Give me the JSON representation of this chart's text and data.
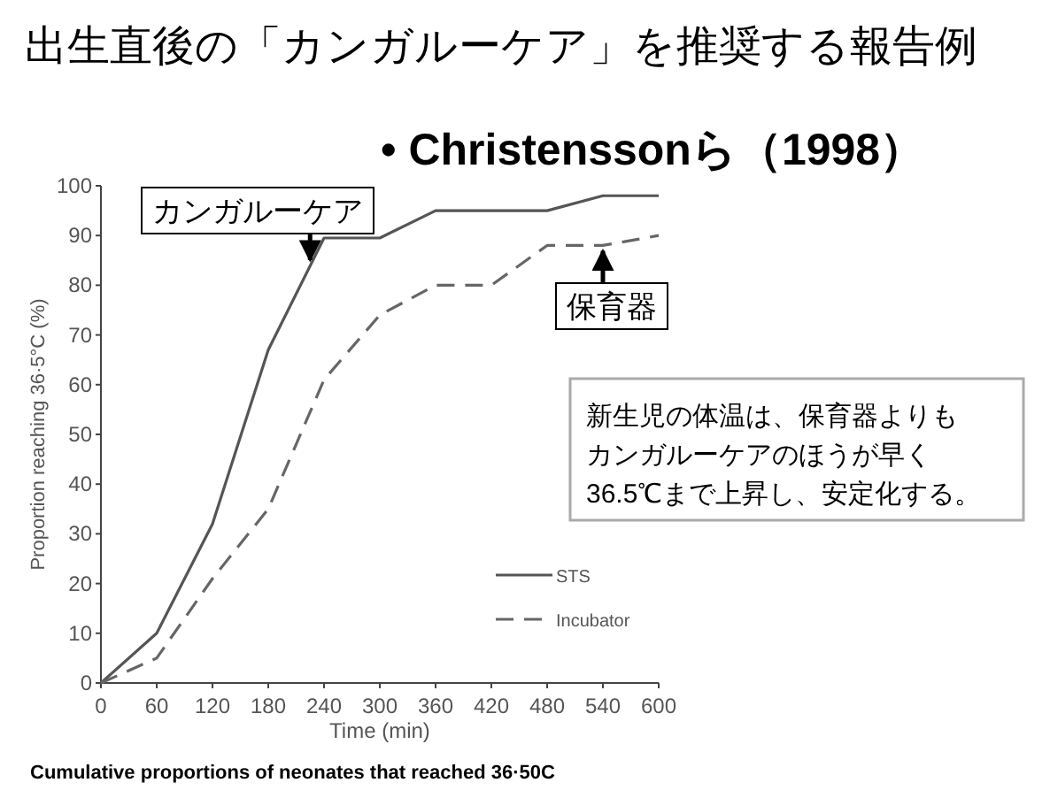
{
  "chart_data": {
    "type": "line",
    "title": "出生直後の「カンガルーケア」を推奨する報告例",
    "subtitle": "• Christenssonら（1998）",
    "xlabel": "Time (min)",
    "ylabel": "Proportion reaching 36·5°C (%)",
    "x": [
      0,
      60,
      120,
      180,
      240,
      300,
      360,
      420,
      480,
      540,
      600
    ],
    "series": [
      {
        "name": "STS",
        "color": "#555555",
        "line_style": "solid",
        "values": [
          0,
          10,
          32,
          67,
          89.5,
          89.5,
          95,
          95,
          95,
          98,
          98
        ]
      },
      {
        "name": "Incubator",
        "color": "#666666",
        "line_style": "dashed",
        "values": [
          0,
          5,
          21,
          35,
          61,
          74,
          80,
          80,
          88,
          88,
          90
        ]
      }
    ],
    "xlim": [
      0,
      600
    ],
    "xticks": [
      0,
      60,
      120,
      180,
      240,
      300,
      360,
      420,
      480,
      540,
      600
    ],
    "ylim": [
      0,
      100
    ],
    "yticks": [
      0,
      10,
      20,
      30,
      40,
      50,
      60,
      70,
      80,
      90,
      100
    ],
    "grid": false,
    "legend": "bottom right",
    "marker": "none",
    "annotations": [
      {
        "text": "カンガルーケア",
        "x": 225,
        "y": 84
      },
      {
        "text": "保育器",
        "x": 540,
        "y": 88
      },
      "新生児の体温は、保育器よりも",
      "カンガルーケアのほうが早く",
      "36.5℃まで上昇し、安定化する。",
      "Cumulative proportions of neonates that reached 36·50C"
    ]
  }
}
